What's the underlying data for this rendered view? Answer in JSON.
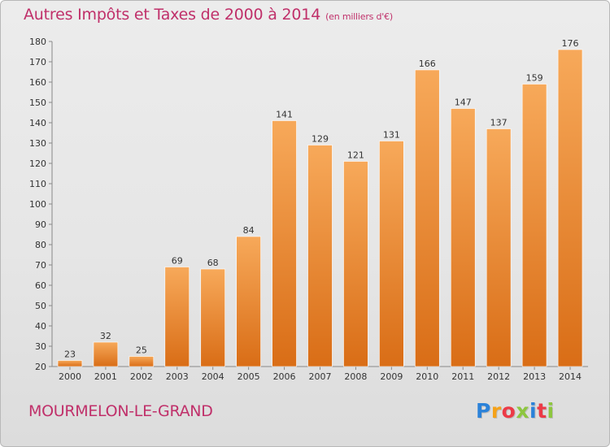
{
  "title": "Autres Impôts et Taxes de 2000 à 2014",
  "subtitle_unit": "(en milliers d'€)",
  "place_label": "MOURMELON-LE-GRAND",
  "logo": {
    "letters": [
      "P",
      "r",
      "o",
      "x",
      "i",
      "t",
      "i"
    ],
    "colors": [
      "#2b82d9",
      "#f5a219",
      "#ec3b47",
      "#8dc63f",
      "#2b82d9",
      "#ec3b47",
      "#8dc63f"
    ]
  },
  "colors": {
    "bar_top": "#f7a95a",
    "bar_bottom": "#d96d16",
    "title": "#c0306a",
    "axis_text": "#333333"
  },
  "chart_data": {
    "type": "bar",
    "title": "Autres Impôts et Taxes de 2000 à 2014",
    "xlabel": "",
    "ylabel": "",
    "categories": [
      "2000",
      "2001",
      "2002",
      "2003",
      "2004",
      "2005",
      "2006",
      "2007",
      "2008",
      "2009",
      "2010",
      "2011",
      "2012",
      "2013",
      "2014"
    ],
    "values": [
      23,
      32,
      25,
      69,
      68,
      84,
      141,
      129,
      121,
      131,
      166,
      147,
      137,
      159,
      176
    ],
    "ylim": [
      20,
      180
    ],
    "yticks": [
      20,
      30,
      40,
      50,
      60,
      70,
      80,
      90,
      100,
      110,
      120,
      130,
      140,
      150,
      160,
      170,
      180
    ],
    "grid": false,
    "legend": "none"
  }
}
